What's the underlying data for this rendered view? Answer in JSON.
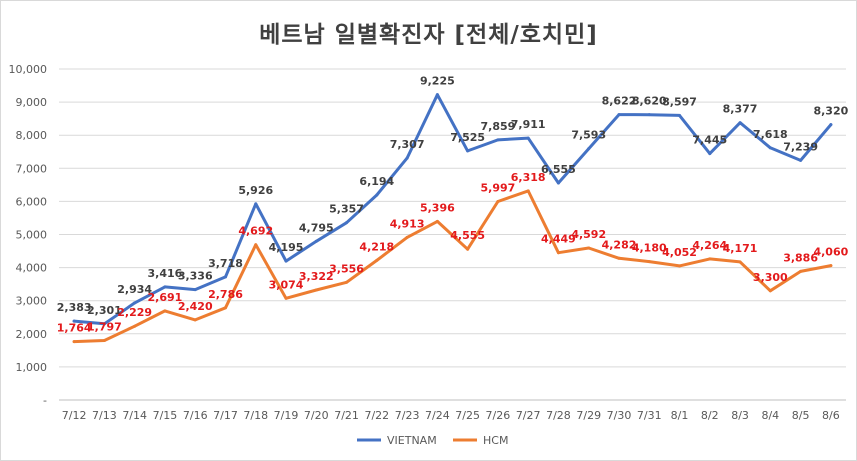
{
  "chart_data": {
    "type": "line",
    "title": "베트남  일별확진자 [전체/호치민]",
    "categories": [
      "7/12",
      "7/13",
      "7/14",
      "7/15",
      "7/16",
      "7/17",
      "7/18",
      "7/19",
      "7/20",
      "7/21",
      "7/22",
      "7/23",
      "7/24",
      "7/25",
      "7/26",
      "7/27",
      "7/28",
      "7/29",
      "7/30",
      "7/31",
      "8/1",
      "8/2",
      "8/3",
      "8/4",
      "8/5",
      "8/6"
    ],
    "series": [
      {
        "name": "VIETNAM",
        "color": "#4472c4",
        "values": [
          2383,
          2301,
          2934,
          3416,
          3336,
          3718,
          5926,
          4195,
          4795,
          5357,
          6194,
          7307,
          9225,
          7525,
          7859,
          7911,
          6555,
          7593,
          8622,
          8620,
          8597,
          7445,
          8377,
          7618,
          7239,
          8320
        ],
        "labels": [
          "2,383",
          "2,301",
          "2,934",
          "3,416",
          "3,336",
          "3,718",
          "5,926",
          "4,195",
          "4,795",
          "5,357",
          "6,194",
          "7,307",
          "9,225",
          "7,525",
          "7,859",
          "7,911",
          "6,555",
          "7,593",
          "8,622",
          "8,620",
          "8,597",
          "7,445",
          "8,377",
          "7,618",
          "7,239",
          "8,320"
        ]
      },
      {
        "name": "HCM",
        "color": "#ed7d31",
        "values": [
          1764,
          1797,
          2229,
          2691,
          2420,
          2786,
          4692,
          3074,
          3322,
          3556,
          4218,
          4913,
          5396,
          4555,
          5997,
          6318,
          4449,
          4592,
          4282,
          4180,
          4052,
          4264,
          4171,
          3300,
          3886,
          4060
        ],
        "labels": [
          "1,764",
          "1,797",
          "2,229",
          "2,691",
          "2,420",
          "2,786",
          "4,692",
          "3,074",
          "3,322",
          "3,556",
          "4,218",
          "4,913",
          "5,396",
          "4,555",
          "5,997",
          "6,318",
          "4,449",
          "4,592",
          "4,282",
          "4,180",
          "4,052",
          "4,264",
          "4,171",
          "3,300",
          "3,886",
          "4,060"
        ]
      }
    ],
    "ylim": [
      0,
      10000
    ],
    "yticks": [
      0,
      1000,
      2000,
      3000,
      4000,
      5000,
      6000,
      7000,
      8000,
      9000,
      10000
    ],
    "ytick_labels": [
      "-",
      "1,000",
      "2,000",
      "3,000",
      "4,000",
      "5,000",
      "6,000",
      "7,000",
      "8,000",
      "9,000",
      "10,000"
    ],
    "grid": true,
    "legend": "bottom",
    "xlabel": "",
    "ylabel": ""
  }
}
